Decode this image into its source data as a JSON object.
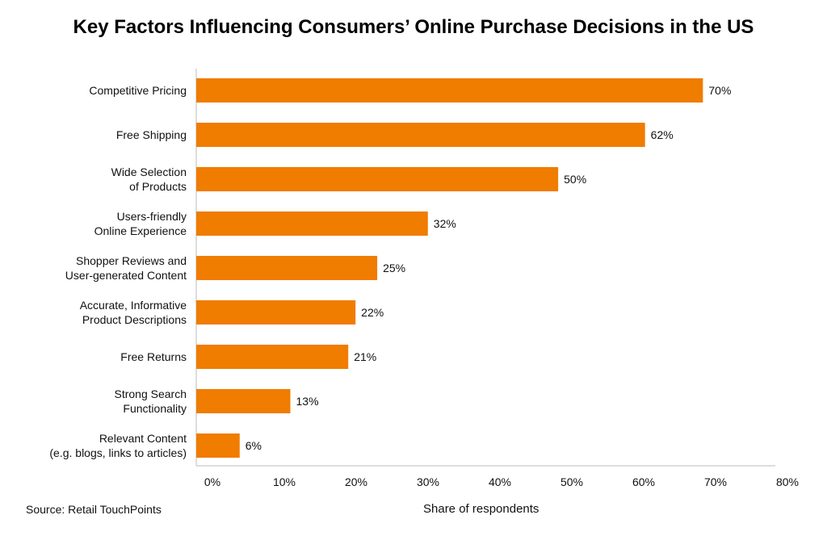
{
  "chart_data": {
    "type": "bar",
    "orientation": "horizontal",
    "title": "Key Factors Influencing Consumers’ Online Purchase Decisions in the US",
    "categories": [
      [
        "Competitive Pricing"
      ],
      [
        "Free Shipping"
      ],
      [
        "Wide Selection",
        "of Products"
      ],
      [
        "Users-friendly",
        "Online Experience"
      ],
      [
        "Shopper Reviews and",
        "User-generated Content"
      ],
      [
        "Accurate, Informative",
        "Product Descriptions"
      ],
      [
        "Free Returns"
      ],
      [
        "Strong Search",
        "Functionality"
      ],
      [
        "Relevant Content",
        "(e.g. blogs, links to articles)"
      ]
    ],
    "values": [
      70,
      62,
      50,
      32,
      25,
      22,
      21,
      13,
      6
    ],
    "data_labels": [
      "70%",
      "62%",
      "50%",
      "32%",
      "25%",
      "22%",
      "21%",
      "13%",
      "6%"
    ],
    "xlabel": "Share of respondents",
    "ylabel": "",
    "xlim": [
      0,
      80
    ],
    "xticks": [
      "0%",
      "10%",
      "20%",
      "30%",
      "40%",
      "50%",
      "60%",
      "70%",
      "80%"
    ],
    "grid": false,
    "bar_color": "#F07C00"
  },
  "source": "Source: Retail TouchPoints"
}
